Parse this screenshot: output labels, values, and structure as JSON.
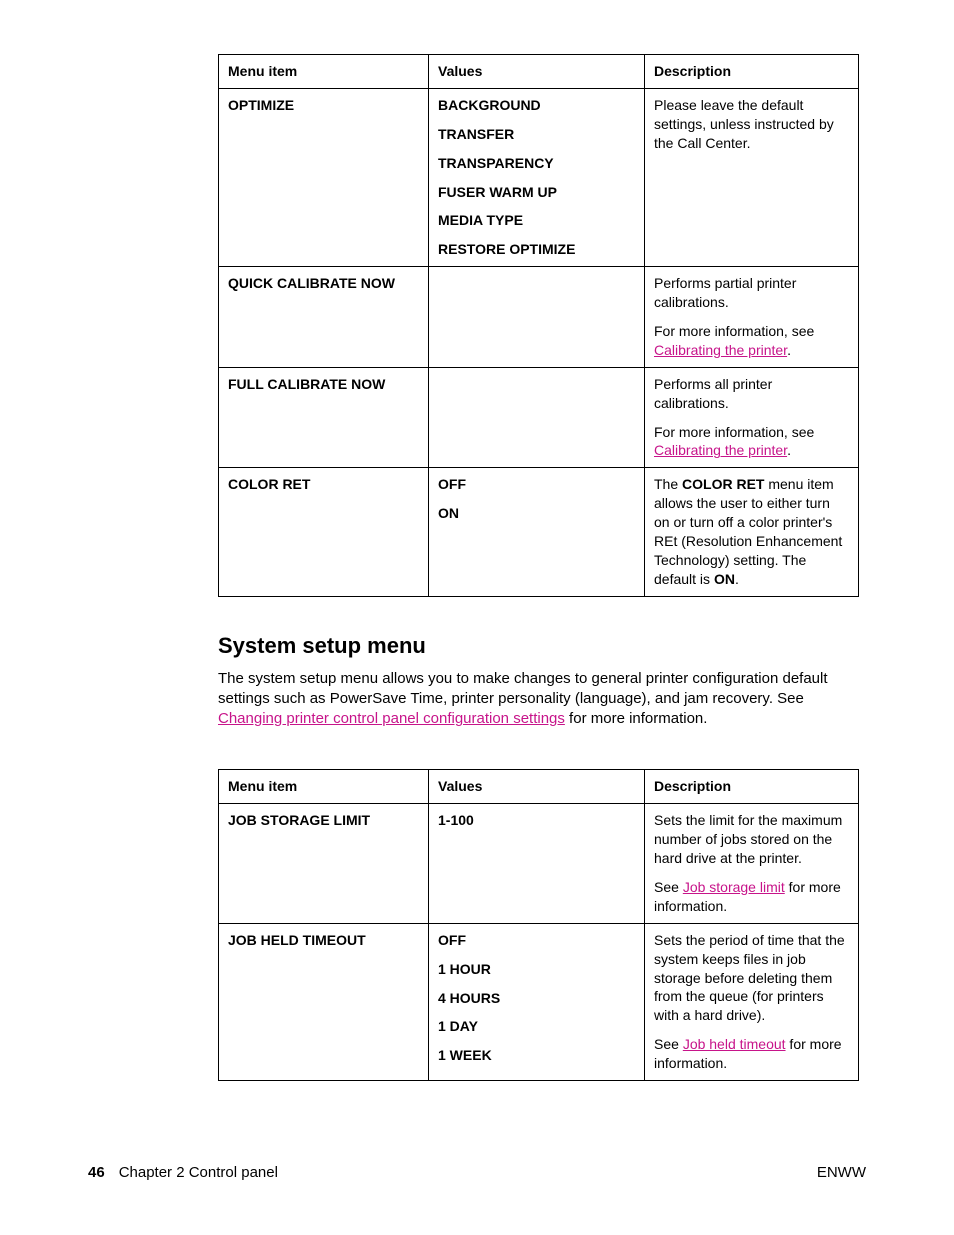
{
  "table1": {
    "headers": [
      "Menu item",
      "Values",
      "Description"
    ],
    "rows": [
      {
        "item": "OPTIMIZE",
        "values": [
          "BACKGROUND",
          "TRANSFER",
          "TRANSPARENCY",
          "FUSER WARM UP",
          "MEDIA TYPE",
          "RESTORE OPTIMIZE"
        ],
        "desc_plain": "Please leave the default settings, unless instructed by the Call Center."
      },
      {
        "item": "QUICK CALIBRATE NOW",
        "values": [],
        "desc_p1": "Performs partial printer calibrations.",
        "desc_p2_prefix": "For more information, see ",
        "desc_p2_link": "Calibrating the printer",
        "desc_p2_suffix": "."
      },
      {
        "item": "FULL CALIBRATE NOW",
        "values": [],
        "desc_p1": "Performs all printer calibrations.",
        "desc_p2_prefix": "For more information, see ",
        "desc_p2_link": "Calibrating the printer",
        "desc_p2_suffix": "."
      },
      {
        "item": "COLOR RET",
        "values": [
          "OFF",
          "ON"
        ],
        "desc_pre": "The ",
        "desc_bold1": "COLOR RET",
        "desc_mid": " menu item allows the user to either turn on or turn off a color printer's REt (Resolution Enhancement Technology) setting. The default is ",
        "desc_bold2": "ON",
        "desc_post": "."
      }
    ]
  },
  "section": {
    "title": "System setup menu",
    "body_pre": "The system setup menu allows you to make changes to general printer configuration default settings such as PowerSave Time, printer personality (language), and jam recovery. See ",
    "body_link": "Changing printer control panel configuration settings",
    "body_post": " for more information."
  },
  "table2": {
    "headers": [
      "Menu item",
      "Values",
      "Description"
    ],
    "rows": [
      {
        "item": "JOB STORAGE LIMIT",
        "values_plain": "1-100",
        "desc_p1": "Sets the limit for the maximum number of jobs stored on the hard drive at the printer.",
        "desc_p2_prefix": "See ",
        "desc_p2_link": "Job storage limit",
        "desc_p2_suffix": " for more information."
      },
      {
        "item": "JOB HELD TIMEOUT",
        "values": [
          "OFF",
          "1 HOUR",
          "4 HOURS",
          "1 DAY",
          "1 WEEK"
        ],
        "desc_p1": "Sets the period of time that the system keeps files in job storage before deleting them from the queue (for printers with a hard drive).",
        "desc_p2_prefix": "See ",
        "desc_p2_link": "Job held timeout",
        "desc_p2_suffix": " for more information."
      }
    ]
  },
  "footer": {
    "page_number": "46",
    "chapter": "Chapter 2   Control panel",
    "right": "ENWW"
  },
  "colors": {
    "link": "#c7148a",
    "text": "#000000",
    "border": "#000000",
    "background": "#ffffff"
  }
}
